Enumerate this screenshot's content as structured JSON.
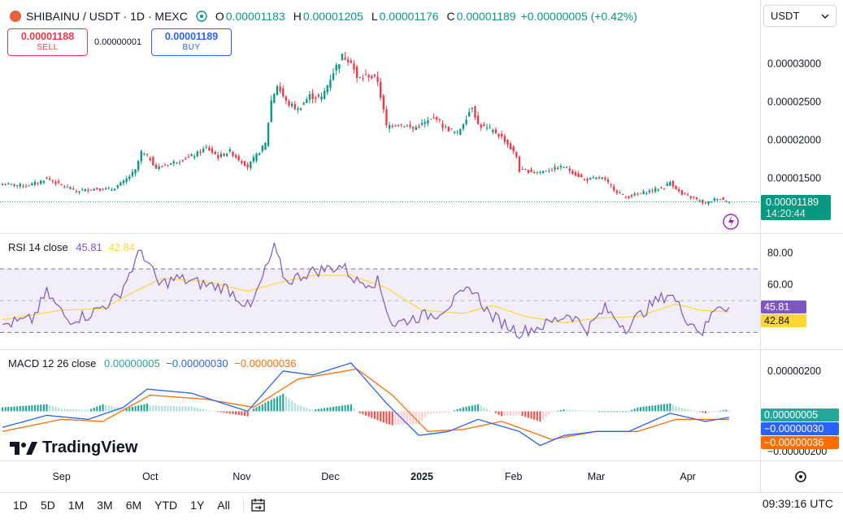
{
  "header": {
    "symbol": "SHIBAINU / USDT · 1D · MEXC",
    "o_label": "O",
    "o_value": "0.00001183",
    "h_label": "H",
    "h_value": "0.00001205",
    "l_label": "L",
    "l_value": "0.00001176",
    "c_label": "C",
    "c_value": "0.00001189",
    "change": "+0.00000005 (+0.42%)"
  },
  "trade": {
    "sell_price": "0.00001188",
    "sell_label": "SELL",
    "spread": "0.00000001",
    "buy_price": "0.00001189",
    "buy_label": "BUY"
  },
  "currency_selector": {
    "value": "USDT"
  },
  "price_axis": {
    "ticks": [
      "0.00003000",
      "0.00002500",
      "0.00002000",
      "0.00001500"
    ],
    "last_price": "0.00001189",
    "countdown": "14:20:44"
  },
  "rsi": {
    "title": "RSI 14 close",
    "rsi_value": "45.81",
    "ma_value": "42.84",
    "ticks": [
      "80.00",
      "60.00"
    ]
  },
  "macd": {
    "title": "MACD 12 26 close",
    "hist_value": "0.00000005",
    "macd_value": "−0.00000030",
    "signal_value": "−0.00000036",
    "ticks": [
      "0.00000200",
      "−0.00000200"
    ]
  },
  "time_axis": {
    "labels": [
      "Sep",
      "Oct",
      "Nov",
      "Dec",
      "2025",
      "Feb",
      "Mar",
      "Apr"
    ]
  },
  "toolbar": {
    "timeframes": [
      "1D",
      "5D",
      "1M",
      "3M",
      "6M",
      "YTD",
      "1Y",
      "All"
    ],
    "clock": "09:39:16 UTC"
  },
  "branding": {
    "logo_text": "TradingView"
  },
  "colors": {
    "up": "#089981",
    "down": "#f23645",
    "rsi": "#7e57c2",
    "rsi_ma": "#fdd835",
    "macd": "#2962ff",
    "signal": "#ff6d00",
    "hist_up": "#26a69a",
    "hist_down": "#ef5350"
  },
  "chart_data": [
    {
      "type": "candlestick",
      "title": "SHIBAINU / USDT · 1D · MEXC",
      "x_range": [
        "2024-08-12",
        "2025-04-15"
      ],
      "ylim": [
        9.8e-06,
        3.52e-05
      ],
      "month_marks": [
        [
          "Sep",
          "2024-09-01"
        ],
        [
          "Oct",
          "2024-10-01"
        ],
        [
          "Nov",
          "2024-11-01"
        ],
        [
          "Dec",
          "2024-12-01"
        ],
        [
          "2025",
          "2025-01-01"
        ],
        [
          "Feb",
          "2025-02-01"
        ],
        [
          "Mar",
          "2025-03-01"
        ],
        [
          "Apr",
          "2025-04-01"
        ]
      ],
      "close_keypoints": [
        [
          "2024-08-12",
          1.42e-05
        ],
        [
          "2024-08-20",
          1.4e-05
        ],
        [
          "2024-08-24",
          1.44e-05
        ],
        [
          "2024-08-27",
          1.5e-05
        ],
        [
          "2024-08-31",
          1.42e-05
        ],
        [
          "2024-09-06",
          1.33e-05
        ],
        [
          "2024-09-12",
          1.36e-05
        ],
        [
          "2024-09-18",
          1.35e-05
        ],
        [
          "2024-09-22",
          1.45e-05
        ],
        [
          "2024-09-26",
          1.6e-05
        ],
        [
          "2024-09-28",
          1.84e-05
        ],
        [
          "2024-10-01",
          1.75e-05
        ],
        [
          "2024-10-03",
          1.63e-05
        ],
        [
          "2024-10-10",
          1.72e-05
        ],
        [
          "2024-10-16",
          1.8e-05
        ],
        [
          "2024-10-20",
          1.9e-05
        ],
        [
          "2024-10-24",
          1.78e-05
        ],
        [
          "2024-10-28",
          1.85e-05
        ],
        [
          "2024-11-03",
          1.65e-05
        ],
        [
          "2024-11-06",
          1.8e-05
        ],
        [
          "2024-11-09",
          1.95e-05
        ],
        [
          "2024-11-11",
          2.52e-05
        ],
        [
          "2024-11-13",
          2.72e-05
        ],
        [
          "2024-11-16",
          2.5e-05
        ],
        [
          "2024-11-20",
          2.4e-05
        ],
        [
          "2024-11-24",
          2.58e-05
        ],
        [
          "2024-11-28",
          2.55e-05
        ],
        [
          "2024-12-02",
          2.9e-05
        ],
        [
          "2024-12-05",
          3.1e-05
        ],
        [
          "2024-12-08",
          3.05e-05
        ],
        [
          "2024-12-10",
          2.8e-05
        ],
        [
          "2024-12-14",
          2.85e-05
        ],
        [
          "2024-12-17",
          2.78e-05
        ],
        [
          "2024-12-20",
          2.18e-05
        ],
        [
          "2024-12-24",
          2.22e-05
        ],
        [
          "2024-12-29",
          2.15e-05
        ],
        [
          "2025-01-06",
          2.3e-05
        ],
        [
          "2025-01-08",
          2.18e-05
        ],
        [
          "2025-01-13",
          2.08e-05
        ],
        [
          "2025-01-18",
          2.45e-05
        ],
        [
          "2025-01-20",
          2.2e-05
        ],
        [
          "2025-01-26",
          2.1e-05
        ],
        [
          "2025-01-29",
          2e-05
        ],
        [
          "2025-02-02",
          1.78e-05
        ],
        [
          "2025-02-03",
          1.6e-05
        ],
        [
          "2025-02-10",
          1.58e-05
        ],
        [
          "2025-02-18",
          1.65e-05
        ],
        [
          "2025-02-25",
          1.48e-05
        ],
        [
          "2025-03-03",
          1.5e-05
        ],
        [
          "2025-03-08",
          1.32e-05
        ],
        [
          "2025-03-11",
          1.25e-05
        ],
        [
          "2025-03-18",
          1.32e-05
        ],
        [
          "2025-03-24",
          1.38e-05
        ],
        [
          "2025-03-26",
          1.45e-05
        ],
        [
          "2025-03-30",
          1.28e-05
        ],
        [
          "2025-04-03",
          1.24e-05
        ],
        [
          "2025-04-07",
          1.16e-05
        ],
        [
          "2025-04-11",
          1.24e-05
        ],
        [
          "2025-04-15",
          1.19e-05
        ]
      ],
      "last_close": 1.189e-05
    },
    {
      "type": "line",
      "title": "RSI 14 close",
      "ylim": [
        22,
        88
      ],
      "bands": [
        70,
        50,
        30
      ],
      "series": [
        {
          "name": "RSI",
          "points": [
            [
              "2024-08-12",
              35
            ],
            [
              "2024-08-22",
              38
            ],
            [
              "2024-08-27",
              55
            ],
            [
              "2024-09-03",
              38
            ],
            [
              "2024-09-10",
              41
            ],
            [
              "2024-09-20",
              52
            ],
            [
              "2024-09-28",
              82
            ],
            [
              "2024-10-04",
              60
            ],
            [
              "2024-10-10",
              64
            ],
            [
              "2024-10-20",
              60
            ],
            [
              "2024-10-27",
              58
            ],
            [
              "2024-11-04",
              45
            ],
            [
              "2024-11-12",
              83
            ],
            [
              "2024-11-16",
              62
            ],
            [
              "2024-11-24",
              68
            ],
            [
              "2024-12-05",
              72
            ],
            [
              "2024-12-10",
              62
            ],
            [
              "2024-12-17",
              62
            ],
            [
              "2024-12-22",
              35
            ],
            [
              "2024-12-31",
              40
            ],
            [
              "2025-01-06",
              42
            ],
            [
              "2025-01-18",
              58
            ],
            [
              "2025-01-24",
              41
            ],
            [
              "2025-02-03",
              30
            ],
            [
              "2025-02-12",
              35
            ],
            [
              "2025-02-20",
              42
            ],
            [
              "2025-02-26",
              32
            ],
            [
              "2025-03-04",
              45
            ],
            [
              "2025-03-11",
              33
            ],
            [
              "2025-03-20",
              48
            ],
            [
              "2025-03-26",
              55
            ],
            [
              "2025-04-01",
              38
            ],
            [
              "2025-04-06",
              30
            ],
            [
              "2025-04-11",
              48
            ],
            [
              "2025-04-15",
              45.81
            ]
          ]
        },
        {
          "name": "RSI MA",
          "points": [
            [
              "2024-08-12",
              38
            ],
            [
              "2024-09-01",
              44
            ],
            [
              "2024-09-15",
              45
            ],
            [
              "2024-09-25",
              55
            ],
            [
              "2024-10-05",
              64
            ],
            [
              "2024-10-20",
              62
            ],
            [
              "2024-11-03",
              56
            ],
            [
              "2024-11-15",
              62
            ],
            [
              "2024-11-25",
              66
            ],
            [
              "2024-12-08",
              66
            ],
            [
              "2024-12-20",
              58
            ],
            [
              "2025-01-01",
              44
            ],
            [
              "2025-01-15",
              42
            ],
            [
              "2025-01-25",
              47
            ],
            [
              "2025-02-05",
              40
            ],
            [
              "2025-02-18",
              36
            ],
            [
              "2025-03-01",
              39
            ],
            [
              "2025-03-15",
              40
            ],
            [
              "2025-03-28",
              48
            ],
            [
              "2025-04-05",
              44
            ],
            [
              "2025-04-15",
              42.84
            ]
          ]
        }
      ]
    },
    {
      "type": "line",
      "title": "MACD 12 26 close",
      "ylim": [
        -2.4e-06,
        2.8e-06
      ],
      "series": [
        {
          "name": "MACD",
          "points": [
            [
              "2024-08-12",
              -8e-07
            ],
            [
              "2024-08-27",
              -2e-07
            ],
            [
              "2024-09-10",
              -4e-07
            ],
            [
              "2024-09-22",
              2e-07
            ],
            [
              "2024-09-30",
              1.1e-06
            ],
            [
              "2024-10-15",
              9e-07
            ],
            [
              "2024-11-03",
              0.0
            ],
            [
              "2024-11-15",
              2e-06
            ],
            [
              "2024-11-25",
              1.8e-06
            ],
            [
              "2024-12-08",
              2.4e-06
            ],
            [
              "2024-12-20",
              4e-07
            ],
            [
              "2024-12-31",
              -1.2e-06
            ],
            [
              "2025-01-10",
              -1e-06
            ],
            [
              "2025-01-20",
              -4e-07
            ],
            [
              "2025-02-03",
              -1e-06
            ],
            [
              "2025-02-10",
              -1.7e-06
            ],
            [
              "2025-02-18",
              -1.2e-06
            ],
            [
              "2025-03-01",
              -1e-06
            ],
            [
              "2025-03-12",
              -1e-06
            ],
            [
              "2025-03-26",
              -1e-07
            ],
            [
              "2025-04-07",
              -5e-07
            ],
            [
              "2025-04-15",
              -3e-07
            ]
          ]
        },
        {
          "name": "Signal",
          "points": [
            [
              "2024-08-12",
              -1e-06
            ],
            [
              "2024-09-01",
              -4e-07
            ],
            [
              "2024-09-15",
              -5e-07
            ],
            [
              "2024-10-01",
              8e-07
            ],
            [
              "2024-10-20",
              6e-07
            ],
            [
              "2024-11-05",
              2e-07
            ],
            [
              "2024-11-20",
              1.6e-06
            ],
            [
              "2024-12-10",
              2.1e-06
            ],
            [
              "2024-12-22",
              8e-07
            ],
            [
              "2025-01-03",
              -1e-06
            ],
            [
              "2025-01-15",
              -9e-07
            ],
            [
              "2025-01-28",
              -5e-07
            ],
            [
              "2025-02-14",
              -1.4e-06
            ],
            [
              "2025-03-01",
              -1e-06
            ],
            [
              "2025-03-15",
              -1e-06
            ],
            [
              "2025-03-28",
              -4e-07
            ],
            [
              "2025-04-15",
              -4e-07
            ]
          ]
        }
      ],
      "histogram_last": 5e-08
    }
  ]
}
